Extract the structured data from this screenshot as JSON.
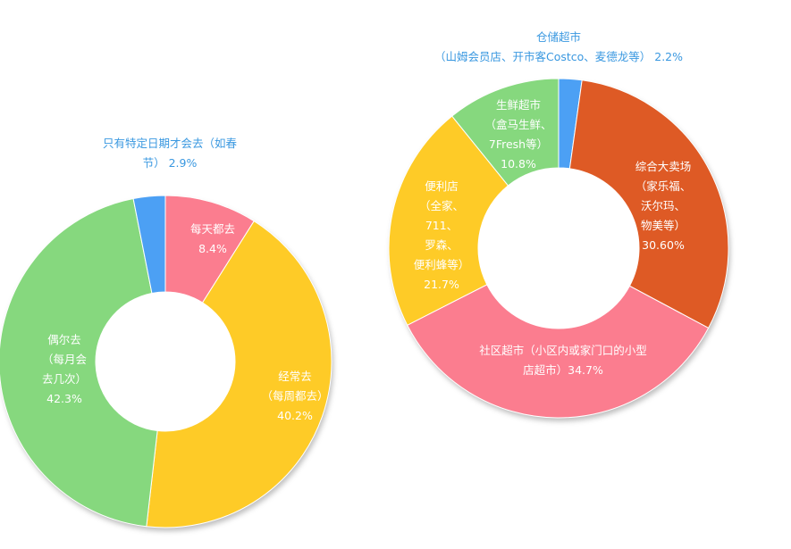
{
  "chart_data": [
    {
      "type": "pie",
      "donut": true,
      "categories": [
        "每天都去",
        "经常去（每周都去）",
        "偶尔去（每月会去几次）",
        "只有特定日期才会去（如春节）"
      ],
      "values": [
        8.4,
        40.2,
        42.3,
        2.9
      ],
      "colors": [
        "#fb7d8f",
        "#fecb27",
        "#86d87e",
        "#4ca0f4"
      ],
      "labels": [
        {
          "lines": [
            "每天都去",
            "8.4%"
          ],
          "outside": false
        },
        {
          "lines": [
            "经常去",
            "（每周都去）",
            "40.2%"
          ],
          "outside": false
        },
        {
          "lines": [
            "偶尔去",
            "（每月会",
            "去几次）",
            "42.3%"
          ],
          "outside": false
        },
        {
          "lines": [
            "只有特定日期才会去（如春",
            "节） 2.9%"
          ],
          "outside": true
        }
      ]
    },
    {
      "type": "pie",
      "donut": true,
      "categories": [
        "仓储超市（山姆会员店、开市客Costco、麦德龙等）",
        "综合大卖场（家乐福、沃尔玛、物美等）",
        "社区超市（小区内或家门口的小型店超市）",
        "便利店（全家、711、罗森、便利蜂等）",
        "生鲜超市（盒马生鲜、7Fresh等）"
      ],
      "values": [
        2.2,
        30.6,
        34.7,
        21.7,
        10.8
      ],
      "colors": [
        "#4ca0f4",
        "#de5a25",
        "#fb7d8f",
        "#fecb27",
        "#86d87e"
      ],
      "labels": [
        {
          "lines": [
            "仓储超市",
            "（山姆会员店、开市客Costco、麦德龙等） 2.2%"
          ],
          "outside": true
        },
        {
          "lines": [
            "综合大卖场",
            "（家乐福、",
            "沃尔玛、",
            "物美等）",
            "30.60%"
          ],
          "outside": false
        },
        {
          "lines": [
            "社区超市（小区内或家门口的小型",
            "店超市）34.7%"
          ],
          "outside": false
        },
        {
          "lines": [
            "便利店",
            "（全家、",
            "711、",
            "罗森、",
            "便利蜂等）",
            "21.7%"
          ],
          "outside": false
        },
        {
          "lines": [
            "生鲜超市",
            "（盒马生鲜、",
            "7Fresh等）",
            "10.8%"
          ],
          "outside": false
        }
      ]
    }
  ]
}
